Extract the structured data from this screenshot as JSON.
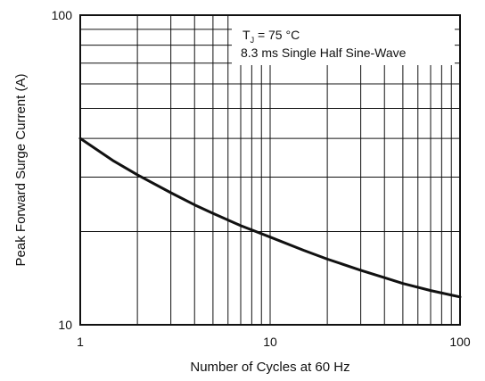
{
  "chart_data": {
    "type": "line",
    "title": "",
    "xlabel": "Number of Cycles at 60 Hz",
    "ylabel": "Peak Forward Surge Current (A)",
    "x_scale": "log",
    "y_scale": "log",
    "xlim": [
      1,
      100
    ],
    "ylim": [
      10,
      100
    ],
    "x_tick_labels": [
      "1",
      "10",
      "100"
    ],
    "y_tick_labels": [
      "10",
      "100"
    ],
    "grid": true,
    "annotation": {
      "tj_symbol": "T",
      "tj_subscript": "J",
      "tj_value": " = 75 °C",
      "line2": "8.3 ms Single Half Sine-Wave"
    },
    "series": [
      {
        "name": "",
        "color": "#111111",
        "x": [
          1,
          1.5,
          2,
          3,
          4,
          5,
          7,
          10,
          15,
          20,
          30,
          40,
          50,
          70,
          100
        ],
        "y": [
          40,
          33.8,
          30.5,
          26.7,
          24.4,
          22.9,
          20.9,
          19.2,
          17.4,
          16.3,
          15.0,
          14.2,
          13.6,
          12.9,
          12.3
        ]
      }
    ]
  }
}
